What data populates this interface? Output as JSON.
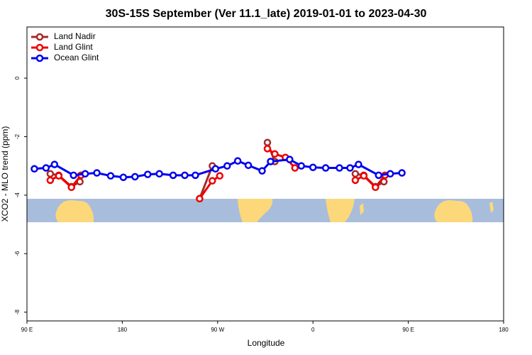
{
  "chart_data": {
    "type": "line",
    "title": "30S-15S September (Ver 11.1_late)   2019-01-01 to 2023-04-30",
    "x_label": "Longitude",
    "y_label": "XCO2 - MLO trend (ppm)",
    "xlim": [
      90,
      540
    ],
    "ylim": [
      -8.3,
      1.75
    ],
    "xticks": [
      {
        "value": 90,
        "label": "90 E"
      },
      180,
      {
        "value": 270,
        "label": "90 W"
      },
      {
        "value": 360,
        "label": "0"
      },
      {
        "value": 450,
        "label": "90 E"
      },
      {
        "value": 540,
        "label": "180"
      }
    ],
    "yticks": [
      0,
      -2,
      -4,
      -6,
      -8
    ],
    "legend": "top-left",
    "series": [
      {
        "name": "Land Nadir",
        "color": "#a52a2a",
        "x": [
          112,
          120,
          132,
          140,
          null,
          253,
          265,
          null,
          317,
          324,
          null,
          400,
          408,
          419,
          427
        ],
        "values": [
          -3.27,
          -3.32,
          -3.71,
          -3.54,
          null,
          -4.12,
          -3.0,
          null,
          -2.2,
          -2.85,
          null,
          -3.27,
          -3.32,
          -3.71,
          -3.54
        ]
      },
      {
        "name": "Land Glint",
        "color": "#ee0000",
        "x": [
          112,
          120,
          132,
          141,
          null,
          253,
          265,
          272,
          null,
          317,
          324,
          334,
          343,
          null,
          400,
          408,
          419,
          428
        ],
        "values": [
          -3.49,
          -3.34,
          -3.73,
          -3.32,
          null,
          -4.12,
          -3.51,
          -3.34,
          null,
          -2.41,
          -2.59,
          -2.71,
          -3.07,
          null,
          -3.49,
          -3.34,
          -3.73,
          -3.32
        ]
      },
      {
        "name": "Ocean Glint",
        "color": "#0000ee",
        "x": [
          97,
          108,
          116,
          134,
          145,
          156,
          169,
          181,
          192,
          204,
          215,
          228,
          239,
          249,
          268,
          279,
          289,
          299,
          312,
          320,
          338,
          349,
          360,
          372,
          385,
          395,
          403,
          422,
          433,
          444
        ],
        "values": [
          -3.1,
          -3.07,
          -2.95,
          -3.32,
          -3.27,
          -3.24,
          -3.34,
          -3.39,
          -3.37,
          -3.29,
          -3.27,
          -3.32,
          -3.32,
          -3.32,
          -3.1,
          -3.0,
          -2.83,
          -2.98,
          -3.17,
          -2.85,
          -2.78,
          -3.0,
          -3.05,
          -3.07,
          -3.07,
          -3.07,
          -2.95,
          -3.32,
          -3.27,
          -3.24
        ]
      }
    ]
  }
}
